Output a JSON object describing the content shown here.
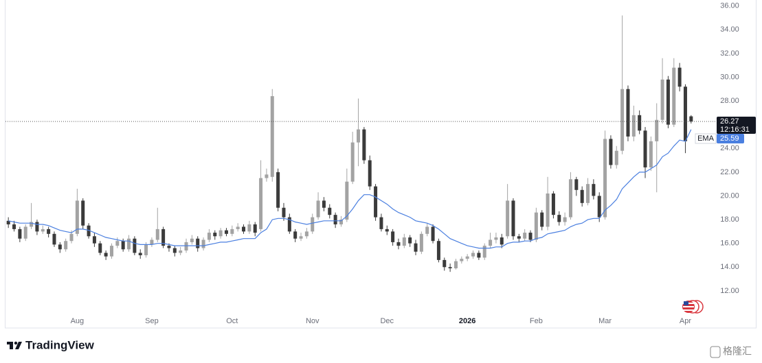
{
  "chart_data": {
    "type": "candlestick",
    "categories": [
      null,
      null,
      null,
      null,
      null,
      null,
      null,
      null,
      null,
      null,
      null,
      null,
      "Aug",
      null,
      null,
      null,
      null,
      null,
      null,
      null,
      null,
      null,
      null,
      null,
      null,
      "Sep",
      null,
      null,
      null,
      null,
      null,
      null,
      null,
      null,
      null,
      null,
      null,
      null,
      null,
      "Oct",
      null,
      null,
      null,
      null,
      null,
      null,
      null,
      null,
      null,
      null,
      null,
      null,
      null,
      "Nov",
      null,
      null,
      null,
      null,
      null,
      null,
      null,
      null,
      null,
      null,
      null,
      null,
      "Dec",
      null,
      null,
      null,
      null,
      null,
      null,
      null,
      null,
      null,
      null,
      null,
      null,
      null,
      "2026",
      null,
      null,
      null,
      null,
      null,
      null,
      null,
      null,
      null,
      null,
      null,
      "Feb",
      null,
      null,
      null,
      null,
      null,
      null,
      null,
      null,
      null,
      null,
      null,
      "Mar",
      null,
      null,
      null,
      null,
      null,
      null,
      null,
      null,
      null,
      null,
      null,
      null,
      null,
      "Apr",
      null
    ],
    "open": [
      17.9,
      17.6,
      17.2,
      16.4,
      17.4,
      17.8,
      17.0,
      17.2,
      16.8,
      15.9,
      15.5,
      16.2,
      16.8,
      19.6,
      17.5,
      16.6,
      16.0,
      15.2,
      14.9,
      15.8,
      16.2,
      15.5,
      16.4,
      15.2,
      15.0,
      15.9,
      16.3,
      17.2,
      15.8,
      15.6,
      15.2,
      15.4,
      16.1,
      16.4,
      15.6,
      16.3,
      16.9,
      16.6,
      17.1,
      16.8,
      17.2,
      17.4,
      17.0,
      17.6,
      17.2,
      21.5,
      21.6,
      22.0,
      19.0,
      18.2,
      17.0,
      16.4,
      16.6,
      17.0,
      18.2,
      19.6,
      19.0,
      18.4,
      17.6,
      18.0,
      21.2,
      24.5,
      25.6,
      23.0,
      20.8,
      18.2,
      17.2,
      17.0,
      16.1,
      15.8,
      16.5,
      16.0,
      15.3,
      16.8,
      17.4,
      16.2,
      14.6,
      14.0,
      13.9,
      14.5,
      14.7,
      14.9,
      15.2,
      14.8,
      15.8,
      16.3,
      16.5,
      16.6,
      19.6,
      16.6,
      16.4,
      16.9,
      16.3,
      18.6,
      17.4,
      20.2,
      18.4,
      17.8,
      18.2,
      21.4,
      20.5,
      19.4,
      21.0,
      20.0,
      18.2,
      24.8,
      22.6,
      23.8,
      29.0,
      25.0,
      26.8,
      25.5,
      22.4,
      24.6,
      26.4,
      29.8,
      26.0,
      30.8,
      29.2,
      26.7
    ],
    "high": [
      18.2,
      17.9,
      17.4,
      17.6,
      19.4,
      18.0,
      17.5,
      17.4,
      17.0,
      16.1,
      16.4,
      17.1,
      20.6,
      19.8,
      17.7,
      16.9,
      16.2,
      15.4,
      16.0,
      16.5,
      16.4,
      16.7,
      16.6,
      15.5,
      16.1,
      16.5,
      19.0,
      17.4,
      16.0,
      15.8,
      15.7,
      16.4,
      16.7,
      16.6,
      16.5,
      17.2,
      17.1,
      17.3,
      17.3,
      17.5,
      17.7,
      17.6,
      17.9,
      17.8,
      23.0,
      22.3,
      29.0,
      22.3,
      19.4,
      18.5,
      17.2,
      16.9,
      17.3,
      18.5,
      20.3,
      19.9,
      19.3,
      18.6,
      18.3,
      22.3,
      25.4,
      28.2,
      25.8,
      23.4,
      21.0,
      18.5,
      17.5,
      17.2,
      16.4,
      16.8,
      16.7,
      16.3,
      17.0,
      17.7,
      17.6,
      16.4,
      14.8,
      14.3,
      14.7,
      14.9,
      15.1,
      15.4,
      15.4,
      16.0,
      16.9,
      16.9,
      16.8,
      21.0,
      19.8,
      16.8,
      17.2,
      17.1,
      19.0,
      18.8,
      21.6,
      20.4,
      18.7,
      18.6,
      22.0,
      21.6,
      20.8,
      21.5,
      21.4,
      20.3,
      25.5,
      25.1,
      24.2,
      35.2,
      29.3,
      27.6,
      27.2,
      25.8,
      25.0,
      27.8,
      31.6,
      30.1,
      31.6,
      31.2,
      29.4,
      26.8
    ],
    "low": [
      17.3,
      17.0,
      16.1,
      16.2,
      17.2,
      16.7,
      16.8,
      16.5,
      15.7,
      15.2,
      15.3,
      16.0,
      16.6,
      17.2,
      16.4,
      15.7,
      15.0,
      14.6,
      14.7,
      15.6,
      15.3,
      15.3,
      15.0,
      14.7,
      14.8,
      15.7,
      16.1,
      15.6,
      15.3,
      14.9,
      15.0,
      15.2,
      15.9,
      15.3,
      15.4,
      16.1,
      16.3,
      16.4,
      16.6,
      16.6,
      17.0,
      16.8,
      16.8,
      16.6,
      17.0,
      21.2,
      21.2,
      18.7,
      17.9,
      16.8,
      16.1,
      16.2,
      16.4,
      16.8,
      18.0,
      18.7,
      18.1,
      17.3,
      17.4,
      17.8,
      21.0,
      22.5,
      22.7,
      20.5,
      17.9,
      17.0,
      16.7,
      15.8,
      15.5,
      15.6,
      15.7,
      15.0,
      15.1,
      16.6,
      16.0,
      14.4,
      13.7,
      13.6,
      13.8,
      14.3,
      14.5,
      14.7,
      14.6,
      14.6,
      15.6,
      16.0,
      15.6,
      16.4,
      16.3,
      16.1,
      16.2,
      16.1,
      16.1,
      17.1,
      17.1,
      18.1,
      17.5,
      17.5,
      18.0,
      20.0,
      19.1,
      19.2,
      19.7,
      17.8,
      18.0,
      22.3,
      22.3,
      23.5,
      24.6,
      24.6,
      25.2,
      21.5,
      22.1,
      20.3,
      26.1,
      25.7,
      25.8,
      28.8,
      23.6,
      26.1
    ],
    "close": [
      17.6,
      17.2,
      16.4,
      17.4,
      17.8,
      17.0,
      17.2,
      16.8,
      15.9,
      15.5,
      16.2,
      16.8,
      19.6,
      17.5,
      16.6,
      16.0,
      15.2,
      14.9,
      15.8,
      16.2,
      15.5,
      16.4,
      15.2,
      15.0,
      15.9,
      16.3,
      17.2,
      15.8,
      15.6,
      15.2,
      15.4,
      16.1,
      16.4,
      15.6,
      16.3,
      16.9,
      16.6,
      17.1,
      16.8,
      17.2,
      17.4,
      17.0,
      17.6,
      16.9,
      21.5,
      21.8,
      28.4,
      19.0,
      18.2,
      17.0,
      16.4,
      16.6,
      17.0,
      18.2,
      19.6,
      19.0,
      18.4,
      17.6,
      18.0,
      21.2,
      24.5,
      25.6,
      23.0,
      20.8,
      18.2,
      17.2,
      17.0,
      16.1,
      15.8,
      16.5,
      16.0,
      15.3,
      16.8,
      17.4,
      16.2,
      14.6,
      14.0,
      13.9,
      14.5,
      14.7,
      14.9,
      15.2,
      14.8,
      15.8,
      16.3,
      16.5,
      15.9,
      19.6,
      16.6,
      16.4,
      16.9,
      16.3,
      18.6,
      17.4,
      20.2,
      18.4,
      17.8,
      18.2,
      21.4,
      20.5,
      19.4,
      21.0,
      20.0,
      18.2,
      24.8,
      22.6,
      23.8,
      29.0,
      25.0,
      26.8,
      25.5,
      22.4,
      24.6,
      26.4,
      29.8,
      26.0,
      30.8,
      29.2,
      24.6,
      26.27
    ],
    "up_color": "#a3a3a3",
    "down_color": "#3b3b3b",
    "ema": {
      "name": "EMA",
      "color": "#4a7fe0",
      "values": [
        17.9,
        17.8,
        17.7,
        17.7,
        17.7,
        17.6,
        17.6,
        17.5,
        17.3,
        17.1,
        17.0,
        16.9,
        17.2,
        17.2,
        17.1,
        16.9,
        16.7,
        16.5,
        16.4,
        16.3,
        16.2,
        16.2,
        16.0,
        15.9,
        15.9,
        15.9,
        16.0,
        16.0,
        15.9,
        15.8,
        15.8,
        15.8,
        15.8,
        15.8,
        15.8,
        15.9,
        16.0,
        16.1,
        16.1,
        16.2,
        16.3,
        16.4,
        16.4,
        16.4,
        16.9,
        17.2,
        18.0,
        18.1,
        18.1,
        18.0,
        17.8,
        17.7,
        17.6,
        17.7,
        17.8,
        17.9,
        17.9,
        17.9,
        17.9,
        18.3,
        18.9,
        19.6,
        20.1,
        20.1,
        19.9,
        19.6,
        19.3,
        18.9,
        18.6,
        18.4,
        18.2,
        17.9,
        17.8,
        17.7,
        17.5,
        17.2,
        16.8,
        16.4,
        16.2,
        16.0,
        15.8,
        15.7,
        15.6,
        15.6,
        15.6,
        15.7,
        15.7,
        16.0,
        16.1,
        16.1,
        16.2,
        16.2,
        16.4,
        16.5,
        16.8,
        16.9,
        17.0,
        17.1,
        17.4,
        17.6,
        17.7,
        18.0,
        18.1,
        18.1,
        18.8,
        19.2,
        19.7,
        20.6,
        21.1,
        21.6,
        22.0,
        22.0,
        22.3,
        22.6,
        23.3,
        23.6,
        24.2,
        24.7,
        24.6,
        25.59
      ]
    },
    "countdown": "12:16:31",
    "ylim": [
      10.2,
      36.5
    ],
    "yticks": [
      {
        "value": 12,
        "label": "12.00"
      },
      {
        "value": 14,
        "label": "14.00"
      },
      {
        "value": 16,
        "label": "16.00"
      },
      {
        "value": 18,
        "label": "18.00"
      },
      {
        "value": 20,
        "label": "20.00"
      },
      {
        "value": 22,
        "label": "22.00"
      },
      {
        "value": 24,
        "label": "24.00"
      },
      {
        "value": 26,
        "label": "26.00"
      },
      {
        "value": 28,
        "label": "28.00"
      },
      {
        "value": 30,
        "label": "30.00"
      },
      {
        "value": 32,
        "label": "32.00"
      },
      {
        "value": 34,
        "label": "34.00"
      },
      {
        "value": 36,
        "label": "36.00"
      }
    ],
    "brand": "TradingView",
    "watermark": "格隆汇"
  }
}
